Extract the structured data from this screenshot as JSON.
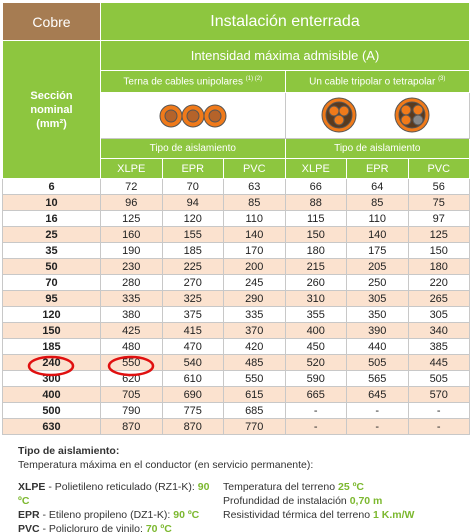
{
  "header": {
    "corner": "Cobre",
    "title": "Instalación enterrada",
    "subtitle": "Intensidad máxima admisible (A)",
    "groups": [
      {
        "label": "Terna de cables unipolares",
        "note": "(1) (2)"
      },
      {
        "label": "Un cable tripolar o tetrapolar",
        "note": "(3)"
      }
    ],
    "section_label": "Sección nominal (mm²)",
    "insulation_label": "Tipo de aislamiento",
    "columns": [
      "XLPE",
      "EPR",
      "PVC",
      "XLPE",
      "EPR",
      "PVC"
    ]
  },
  "table": {
    "rows": [
      [
        "6",
        "72",
        "70",
        "63",
        "66",
        "64",
        "56"
      ],
      [
        "10",
        "96",
        "94",
        "85",
        "88",
        "85",
        "75"
      ],
      [
        "16",
        "125",
        "120",
        "110",
        "115",
        "110",
        "97"
      ],
      [
        "25",
        "160",
        "155",
        "140",
        "150",
        "140",
        "125"
      ],
      [
        "35",
        "190",
        "185",
        "170",
        "180",
        "175",
        "150"
      ],
      [
        "50",
        "230",
        "225",
        "200",
        "215",
        "205",
        "180"
      ],
      [
        "70",
        "280",
        "270",
        "245",
        "260",
        "250",
        "220"
      ],
      [
        "95",
        "335",
        "325",
        "290",
        "310",
        "305",
        "265"
      ],
      [
        "120",
        "380",
        "375",
        "335",
        "355",
        "350",
        "305"
      ],
      [
        "150",
        "425",
        "415",
        "370",
        "400",
        "390",
        "340"
      ],
      [
        "185",
        "480",
        "470",
        "420",
        "450",
        "440",
        "385"
      ],
      [
        "240",
        "550",
        "540",
        "485",
        "520",
        "505",
        "445"
      ],
      [
        "300",
        "620",
        "610",
        "550",
        "590",
        "565",
        "505"
      ],
      [
        "400",
        "705",
        "690",
        "615",
        "665",
        "645",
        "570"
      ],
      [
        "500",
        "790",
        "775",
        "685",
        "-",
        "-",
        "-"
      ],
      [
        "630",
        "870",
        "870",
        "770",
        "-",
        "-",
        "-"
      ]
    ]
  },
  "footer": {
    "heading": "Tipo de aislamiento:",
    "note": "Temperatura máxima en el conductor (en servicio permanente):",
    "insulation": [
      {
        "abbr": "XLPE",
        "desc": "- Polietileno reticulado (RZ1-K):",
        "value": "90 ºC"
      },
      {
        "abbr": "EPR",
        "desc": "- Etileno propileno (DZ1-K):",
        "value": "90 ºC"
      },
      {
        "abbr": "PVC",
        "desc": "- Policloruro de vinilo:",
        "value": "70 ºC"
      }
    ],
    "conditions": [
      {
        "label": "Temperatura del terreno",
        "value": "25 ºC"
      },
      {
        "label": "Profundidad de instalación",
        "value": "0,70 m"
      },
      {
        "label": "Resistividad térmica del terreno",
        "value": "1 K.m/W"
      }
    ]
  }
}
